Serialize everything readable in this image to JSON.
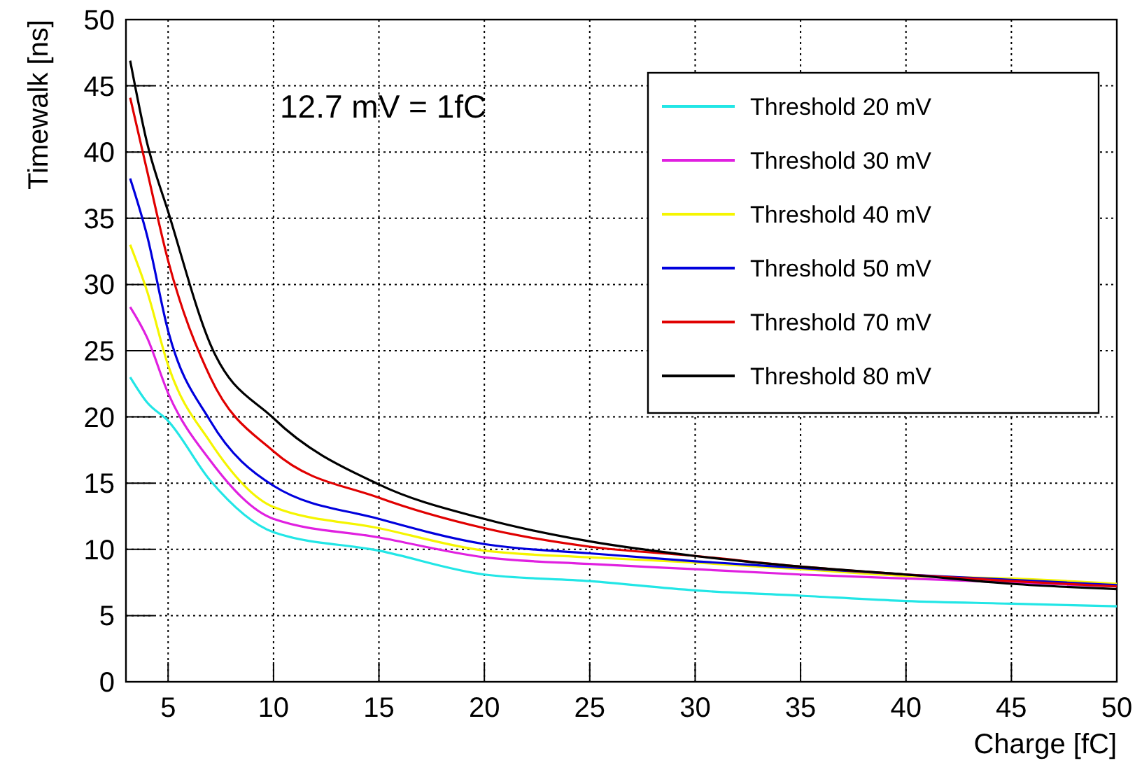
{
  "chart_data": {
    "type": "line",
    "xlabel": "Charge [fC]",
    "ylabel": "Timewalk [ns]",
    "annotations": [
      "12.7 mV = 1fC"
    ],
    "x": [
      3.2,
      4,
      5,
      7,
      10,
      15,
      20,
      25,
      30,
      35,
      40,
      45,
      50
    ],
    "xlim": [
      3,
      50
    ],
    "xticks": [
      5,
      10,
      15,
      20,
      25,
      30,
      35,
      40,
      45,
      50
    ],
    "ylim": [
      0,
      50
    ],
    "yticks": [
      0,
      5,
      10,
      15,
      20,
      25,
      30,
      35,
      40,
      45,
      50
    ],
    "grid": true,
    "legend": "top right",
    "marker": "none",
    "line_style": "solid",
    "series": [
      {
        "name": "Threshold 20 mV",
        "color": "#22e6e6",
        "values": [
          23.0,
          21.1,
          19.7,
          15.2,
          11.3,
          9.9,
          8.1,
          7.6,
          6.9,
          6.5,
          6.1,
          5.9,
          5.7
        ]
      },
      {
        "name": "Threshold 30 mV",
        "color": "#e020e0",
        "values": [
          28.3,
          26.0,
          21.8,
          16.7,
          12.3,
          10.9,
          9.4,
          8.9,
          8.5,
          8.1,
          7.8,
          7.5,
          7.2
        ]
      },
      {
        "name": "Threshold 40 mV",
        "color": "#f5f500",
        "values": [
          33.0,
          29.5,
          23.9,
          18.1,
          13.2,
          11.6,
          9.9,
          9.4,
          9.0,
          8.5,
          8.0,
          7.8,
          7.4
        ]
      },
      {
        "name": "Threshold 50 mV",
        "color": "#0000dd",
        "values": [
          38.0,
          33.7,
          26.5,
          19.7,
          14.8,
          12.3,
          10.4,
          9.7,
          9.1,
          8.6,
          8.1,
          7.7,
          7.3
        ]
      },
      {
        "name": "Threshold 70 mV",
        "color": "#e00000",
        "values": [
          44.1,
          38.6,
          31.8,
          23.0,
          17.4,
          13.9,
          11.6,
          10.2,
          9.5,
          8.7,
          8.1,
          7.6,
          7.2
        ]
      },
      {
        "name": "Threshold 80 mV",
        "color": "#000000",
        "values": [
          46.9,
          40.7,
          35.5,
          25.5,
          19.9,
          14.9,
          12.3,
          10.6,
          9.5,
          8.7,
          8.1,
          7.4,
          7.0
        ]
      }
    ]
  }
}
